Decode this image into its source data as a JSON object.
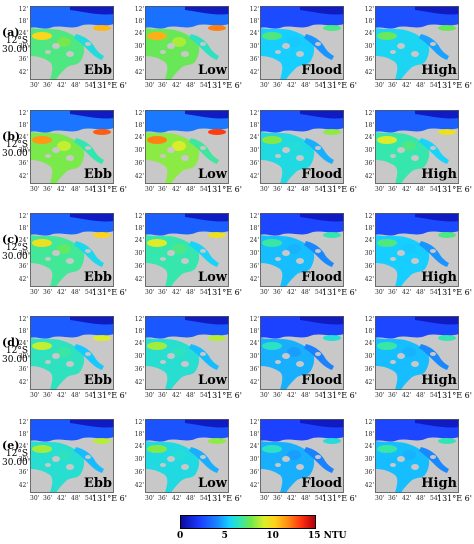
{
  "row_labels": [
    "(a)",
    "(b)",
    "(c)",
    "(d)",
    "(e)"
  ],
  "tide_labels": [
    "Ebb",
    "Low",
    "Flood",
    "High"
  ],
  "lat_ticks": [
    "12'",
    "18'",
    "24'",
    "30'",
    "36'",
    "42'"
  ],
  "lat_main": [
    "12°S",
    "30.00'"
  ],
  "lon_ticks": [
    "30'",
    "36'",
    "42'",
    "48'",
    "54'"
  ],
  "lon_main": "131°E 6'",
  "panels": [
    [
      {
        "turbidity": 0.65
      },
      {
        "turbidity": 0.75
      },
      {
        "turbidity": 0.3
      },
      {
        "turbidity": 0.35
      }
    ],
    [
      {
        "turbidity": 0.8
      },
      {
        "turbidity": 0.85
      },
      {
        "turbidity": 0.4
      },
      {
        "turbidity": 0.55
      }
    ],
    [
      {
        "turbidity": 0.6
      },
      {
        "turbidity": 0.55
      },
      {
        "turbidity": 0.25
      },
      {
        "turbidity": 0.3
      }
    ],
    [
      {
        "turbidity": 0.5
      },
      {
        "turbidity": 0.45
      },
      {
        "turbidity": 0.2
      },
      {
        "turbidity": 0.25
      }
    ],
    [
      {
        "turbidity": 0.45
      },
      {
        "turbidity": 0.4
      },
      {
        "turbidity": 0.2
      },
      {
        "turbidity": 0.25
      }
    ]
  ],
  "colorbar": {
    "ticks": [
      "0",
      "5",
      "10",
      "15 NTU"
    ],
    "values": [
      0,
      5,
      10,
      15
    ],
    "max": 15
  },
  "colors": {
    "land": "#c8c8c8",
    "water_low": "#1f3fff",
    "water_high": "#c0000a"
  }
}
